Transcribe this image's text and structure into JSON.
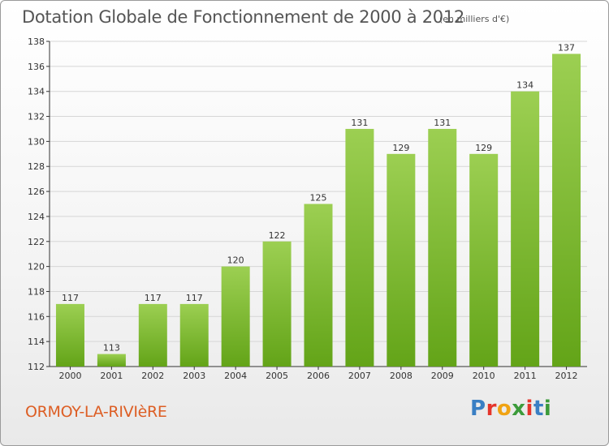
{
  "title": "Dotation Globale de Fonctionnement de 2000 à 2012",
  "subtitle": "(en milliers d'€)",
  "commune": "ORMOY-LA-RIVIèRE",
  "brand": {
    "letters": [
      "P",
      "r",
      "o",
      "x",
      "i",
      "t",
      "i"
    ],
    "colors": [
      "#3a7fc4",
      "#e5352b",
      "#f0a313",
      "#3c9b3a",
      "#e5352b",
      "#3a7fc4",
      "#3c9b3a"
    ]
  },
  "colors": {
    "bar_top": "#9ccf52",
    "bar_bottom": "#63a418",
    "axis": "#333333",
    "grid": "#d6d6d6",
    "text": "#333333"
  },
  "chart_data": {
    "type": "bar",
    "categories": [
      "2000",
      "2001",
      "2002",
      "2003",
      "2004",
      "2005",
      "2006",
      "2007",
      "2008",
      "2009",
      "2010",
      "2011",
      "2012"
    ],
    "values": [
      117,
      113,
      117,
      117,
      120,
      122,
      125,
      131,
      129,
      131,
      129,
      134,
      137
    ],
    "ylim": [
      112,
      138
    ],
    "yticks": [
      112,
      114,
      116,
      118,
      120,
      122,
      124,
      126,
      128,
      130,
      132,
      134,
      136,
      138
    ],
    "grid": true,
    "data_labels": true
  }
}
